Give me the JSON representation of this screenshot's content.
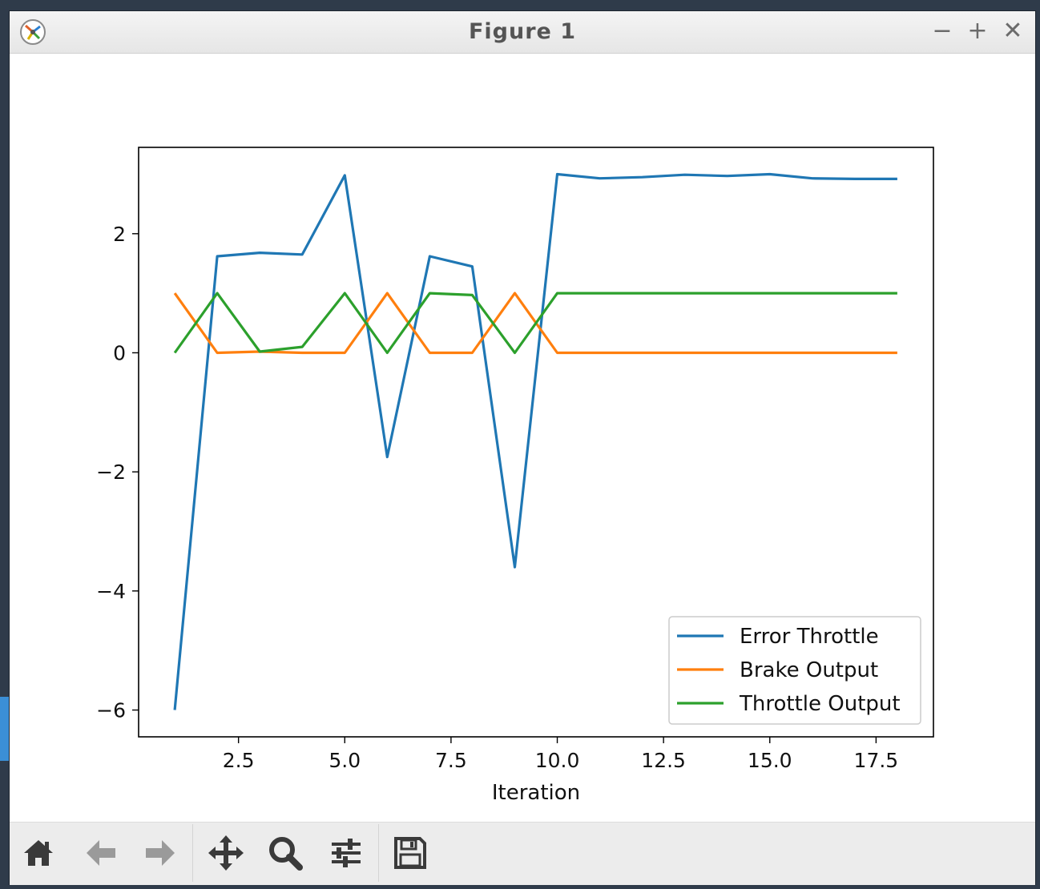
{
  "window": {
    "title": "Figure 1",
    "controls": {
      "minimize": "−",
      "maximize": "+",
      "close": "✕"
    }
  },
  "toolbar": {
    "items": [
      {
        "icon": "home-icon"
      },
      {
        "icon": "back-arrow-icon"
      },
      {
        "icon": "forward-arrow-icon"
      },
      {
        "icon": "pan-icon"
      },
      {
        "icon": "zoom-icon"
      },
      {
        "icon": "configure-subplots-icon"
      },
      {
        "icon": "save-icon"
      }
    ]
  },
  "colors": {
    "error_throttle": "#1f77b4",
    "brake_output": "#ff7f0e",
    "throttle_output": "#2ca02c"
  },
  "chart_data": {
    "type": "line",
    "title": "",
    "xlabel": "Iteration",
    "ylabel": "",
    "xlim": [
      0.15,
      18.85
    ],
    "ylim": [
      -6.45,
      3.45
    ],
    "xticks": [
      2.5,
      5.0,
      7.5,
      10.0,
      12.5,
      15.0,
      17.5
    ],
    "xtick_labels": [
      "2.5",
      "5.0",
      "7.5",
      "10.0",
      "12.5",
      "15.0",
      "17.5"
    ],
    "yticks": [
      2,
      0,
      -2,
      -4,
      -6
    ],
    "ytick_labels": [
      "2",
      "0",
      "−2",
      "−4",
      "−6"
    ],
    "grid": false,
    "legend_position": "lower-right",
    "x": [
      1,
      2,
      3,
      4,
      5,
      6,
      7,
      8,
      9,
      10,
      11,
      12,
      13,
      14,
      15,
      16,
      17,
      18
    ],
    "series": [
      {
        "name": "Error Throttle",
        "color": "#1f77b4",
        "values": [
          -6.0,
          1.62,
          1.68,
          1.65,
          2.98,
          -1.75,
          1.62,
          1.45,
          -3.6,
          3.0,
          2.93,
          2.95,
          2.99,
          2.97,
          3.0,
          2.93,
          2.92,
          2.92
        ]
      },
      {
        "name": "Brake Output",
        "color": "#ff7f0e",
        "values": [
          1.0,
          0.0,
          0.02,
          0.0,
          0.0,
          1.0,
          0.0,
          0.0,
          1.0,
          0.0,
          0.0,
          0.0,
          0.0,
          0.0,
          0.0,
          0.0,
          0.0,
          0.0
        ]
      },
      {
        "name": "Throttle Output",
        "color": "#2ca02c",
        "values": [
          0.0,
          1.0,
          0.02,
          0.1,
          1.0,
          0.0,
          1.0,
          0.97,
          0.0,
          1.0,
          1.0,
          1.0,
          1.0,
          1.0,
          1.0,
          1.0,
          1.0,
          1.0
        ]
      }
    ]
  }
}
